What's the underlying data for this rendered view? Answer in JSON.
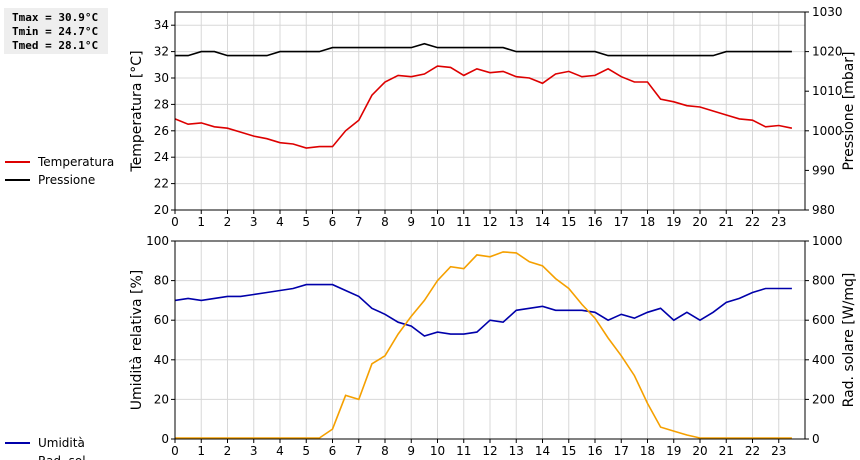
{
  "stats": {
    "tmax": "Tmax = 30.9°C",
    "tmin": "Tmin = 24.7°C",
    "tmed": "Tmed = 28.1°C"
  },
  "colors": {
    "temperatura": "#dd0000",
    "pressione": "#000000",
    "umidita": "#0000aa",
    "radsol": "#f5a000",
    "grid": "#d8d8d8"
  },
  "chart_data": [
    {
      "type": "line",
      "xlim": [
        0,
        24
      ],
      "x_ticks": [
        0,
        1,
        2,
        3,
        4,
        5,
        6,
        7,
        8,
        9,
        10,
        11,
        12,
        13,
        14,
        15,
        16,
        17,
        18,
        19,
        20,
        21,
        22,
        23
      ],
      "left_axis": {
        "label": "Temperatura [°C]",
        "lim": [
          20,
          35
        ],
        "ticks": [
          20,
          22,
          24,
          26,
          28,
          30,
          32,
          34
        ]
      },
      "right_axis": {
        "label": "Pressione [mbar]",
        "lim": [
          980,
          1030
        ],
        "ticks": [
          980,
          990,
          1000,
          1010,
          1020,
          1030
        ]
      },
      "grid": true,
      "legend_position": "left",
      "series": [
        {
          "name": "Temperatura",
          "axis": "left",
          "x": [
            0,
            0.5,
            1,
            1.5,
            2,
            2.5,
            3,
            3.5,
            4,
            4.5,
            5,
            5.5,
            6,
            6.5,
            7,
            7.5,
            8,
            8.5,
            9,
            9.5,
            10,
            10.5,
            11,
            11.5,
            12,
            12.5,
            13,
            13.5,
            14,
            14.5,
            15,
            15.5,
            16,
            16.5,
            17,
            17.5,
            18,
            18.5,
            19,
            19.5,
            20,
            20.5,
            21,
            21.5,
            22,
            22.5,
            23,
            23.5
          ],
          "values": [
            26.9,
            26.5,
            26.6,
            26.3,
            26.2,
            25.9,
            25.6,
            25.4,
            25.1,
            25.0,
            24.7,
            24.8,
            24.8,
            26.0,
            26.8,
            28.7,
            29.7,
            30.2,
            30.1,
            30.3,
            30.9,
            30.8,
            30.2,
            30.7,
            30.4,
            30.5,
            30.1,
            30.0,
            29.6,
            30.3,
            30.5,
            30.1,
            30.2,
            30.7,
            30.1,
            29.7,
            29.7,
            28.4,
            28.2,
            27.9,
            27.8,
            27.5,
            27.2,
            26.9,
            26.8,
            26.3,
            26.4,
            26.2
          ]
        },
        {
          "name": "Pressione",
          "axis": "right",
          "x": [
            0,
            0.5,
            1,
            1.5,
            2,
            2.5,
            3,
            3.5,
            4,
            4.5,
            5,
            5.5,
            6,
            6.5,
            7,
            7.5,
            8,
            8.5,
            9,
            9.5,
            10,
            10.5,
            11,
            11.5,
            12,
            12.5,
            13,
            13.5,
            14,
            14.5,
            15,
            15.5,
            16,
            16.5,
            17,
            17.5,
            18,
            18.5,
            19,
            19.5,
            20,
            20.5,
            21,
            21.5,
            22,
            22.5,
            23,
            23.5
          ],
          "values": [
            1019,
            1019,
            1020,
            1020,
            1019,
            1019,
            1019,
            1019,
            1020,
            1020,
            1020,
            1020,
            1021,
            1021,
            1021,
            1021,
            1021,
            1021,
            1021,
            1022,
            1021,
            1021,
            1021,
            1021,
            1021,
            1021,
            1020,
            1020,
            1020,
            1020,
            1020,
            1020,
            1020,
            1019,
            1019,
            1019,
            1019,
            1019,
            1019,
            1019,
            1019,
            1019,
            1020,
            1020,
            1020,
            1020,
            1020,
            1020
          ]
        }
      ]
    },
    {
      "type": "line",
      "xlim": [
        0,
        24
      ],
      "x_ticks": [
        0,
        1,
        2,
        3,
        4,
        5,
        6,
        7,
        8,
        9,
        10,
        11,
        12,
        13,
        14,
        15,
        16,
        17,
        18,
        19,
        20,
        21,
        22,
        23
      ],
      "left_axis": {
        "label": "Umidità relativa [%]",
        "lim": [
          0,
          100
        ],
        "ticks": [
          0,
          20,
          40,
          60,
          80,
          100
        ]
      },
      "right_axis": {
        "label": "Rad. solare [W/mq]",
        "lim": [
          0,
          1000
        ],
        "ticks": [
          0,
          200,
          400,
          600,
          800,
          1000
        ]
      },
      "grid": true,
      "legend_position": "left",
      "series": [
        {
          "name": "Umidità",
          "axis": "left",
          "x": [
            0,
            0.5,
            1,
            1.5,
            2,
            2.5,
            3,
            3.5,
            4,
            4.5,
            5,
            5.5,
            6,
            6.5,
            7,
            7.5,
            8,
            8.5,
            9,
            9.5,
            10,
            10.5,
            11,
            11.5,
            12,
            12.5,
            13,
            13.5,
            14,
            14.5,
            15,
            15.5,
            16,
            16.5,
            17,
            17.5,
            18,
            18.5,
            19,
            19.5,
            20,
            20.5,
            21,
            21.5,
            22,
            22.5,
            23,
            23.5
          ],
          "values": [
            70,
            71,
            70,
            71,
            72,
            72,
            73,
            74,
            75,
            76,
            78,
            78,
            78,
            75,
            72,
            66,
            63,
            59,
            57,
            52,
            54,
            53,
            53,
            54,
            60,
            59,
            65,
            66,
            67,
            65,
            65,
            65,
            64,
            60,
            63,
            61,
            64,
            66,
            60,
            64,
            60,
            64,
            69,
            71,
            74,
            76,
            76,
            76
          ]
        },
        {
          "name": "Rad. sol.",
          "axis": "right",
          "x": [
            0,
            0.5,
            1,
            1.5,
            2,
            2.5,
            3,
            3.5,
            4,
            4.5,
            5,
            5.5,
            6,
            6.5,
            7,
            7.5,
            8,
            8.5,
            9,
            9.5,
            10,
            10.5,
            11,
            11.5,
            12,
            12.5,
            13,
            13.5,
            14,
            14.5,
            15,
            15.5,
            16,
            16.5,
            17,
            17.5,
            18,
            18.5,
            19,
            19.5,
            20,
            20.5,
            21,
            21.5,
            22,
            22.5,
            23,
            23.5
          ],
          "values": [
            5,
            5,
            5,
            5,
            5,
            5,
            5,
            5,
            5,
            5,
            5,
            5,
            50,
            220,
            200,
            380,
            420,
            530,
            620,
            700,
            800,
            870,
            860,
            930,
            920,
            945,
            940,
            895,
            875,
            810,
            760,
            680,
            610,
            510,
            420,
            320,
            180,
            60,
            40,
            20,
            5,
            5,
            5,
            5,
            5,
            5,
            5,
            5
          ]
        }
      ]
    }
  ]
}
